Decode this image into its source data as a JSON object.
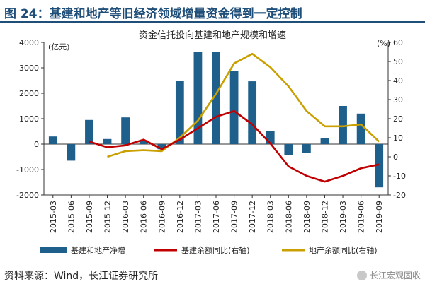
{
  "figure_title": "图 24：基建和地产等旧经济领域增量资金得到一定控制",
  "source_note": "资料来源：Wind，长江证券研究所",
  "watermark": "长江宏观固收",
  "colors": {
    "bar": "#1f5f8b",
    "infra_line": "#c00000",
    "realestate_line": "#c9a000",
    "title_blue": "#1f4e79"
  },
  "chart_data": {
    "type": "bar",
    "title": "资金信托投向基建和地产规模和增速",
    "y_left_label": "(亿元)",
    "y_right_label": "(%)",
    "ylim_left": [
      -2000,
      4000
    ],
    "ylim_right": [
      -20,
      60
    ],
    "left_ticks": [
      "4000",
      "3000",
      "2000",
      "1000",
      "0",
      "-1000",
      "-2000"
    ],
    "right_ticks": [
      "60",
      "50",
      "40",
      "30",
      "20",
      "10",
      "0",
      "-10",
      "-20"
    ],
    "categories": [
      "2015-03",
      "2015-06",
      "2015-09",
      "2015-12",
      "2016-03",
      "2016-06",
      "2016-09",
      "2016-12",
      "2017-03",
      "2017-06",
      "2017-09",
      "2017-12",
      "2018-03",
      "2018-06",
      "2018-09",
      "2018-12",
      "2019-03",
      "2019-06",
      "2019-09"
    ],
    "series": [
      {
        "name": "基建和地产净增",
        "type": "bar",
        "axis": "left",
        "values": [
          300,
          -650,
          950,
          200,
          1050,
          150,
          -200,
          2500,
          3620,
          3620,
          2870,
          2470,
          520,
          -420,
          -350,
          250,
          1500,
          1200,
          -1700
        ]
      },
      {
        "name": "基建余额同比(右轴)",
        "type": "line",
        "axis": "right",
        "values": [
          null,
          null,
          8,
          5,
          6,
          9,
          4,
          9,
          15,
          21,
          24,
          17,
          7,
          -5,
          -10,
          -13,
          -10,
          -6,
          -4
        ]
      },
      {
        "name": "地产余额同比(右轴)",
        "type": "line",
        "axis": "right",
        "values": [
          null,
          null,
          null,
          0,
          3,
          3.5,
          3,
          10,
          19,
          33,
          49,
          54,
          47,
          37,
          24,
          16,
          16,
          17,
          8
        ]
      }
    ],
    "legend_position": "bottom",
    "grid": false
  }
}
